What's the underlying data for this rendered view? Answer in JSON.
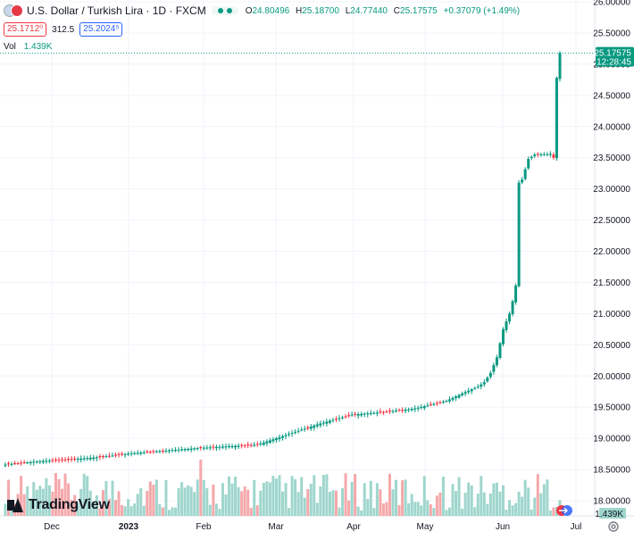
{
  "header": {
    "title": "U.S. Dollar / Turkish Lira · 1D · FXCM",
    "ohlc": {
      "o_key": "O",
      "o": "24.80496",
      "h_key": "H",
      "h": "25.18700",
      "l_key": "L",
      "l": "24.77440",
      "c_key": "C",
      "c": "25.17575",
      "change": "+0.37079 (+1.49%)"
    },
    "sell_price": "25.1712⁰",
    "spread": "312.5",
    "buy_price": "25.2024⁵",
    "vol_label": "Vol",
    "vol_value": "1.439K"
  },
  "logo": {
    "text": "TradingView"
  },
  "price_badge": {
    "price": "25.17575",
    "countdown": "12:28:45"
  },
  "volume_badge": "1.439K",
  "colors": {
    "up": "#089981",
    "down": "#f23645",
    "vol_up": "#9fd6cd",
    "vol_down": "#f5a8aa",
    "grid": "#f0f3fa",
    "text": "#131722"
  },
  "chart_data": {
    "type": "candlestick",
    "y_axis_ticks": [
      "18.00000",
      "18.50000",
      "19.00000",
      "19.50000",
      "20.00000",
      "20.50000",
      "21.00000",
      "21.50000",
      "22.00000",
      "22.50000",
      "23.00000",
      "23.50000",
      "24.00000",
      "24.50000",
      "25.00000",
      "25.50000",
      "26.00000"
    ],
    "ylim": [
      17.8,
      26.0
    ],
    "x_axis_ticks": [
      "Dec",
      "2023",
      "Feb",
      "Mar",
      "Apr",
      "May",
      "Jun",
      "Jul"
    ],
    "last_close": 25.17575,
    "series": [
      {
        "name": "price",
        "anchors": [
          [
            0,
            18.58
          ],
          [
            10,
            18.63
          ],
          [
            20,
            18.66
          ],
          [
            30,
            18.7
          ],
          [
            40,
            18.76
          ],
          [
            50,
            18.8
          ],
          [
            60,
            18.84
          ],
          [
            70,
            18.87
          ],
          [
            80,
            18.9
          ],
          [
            90,
            19.07
          ],
          [
            100,
            19.24
          ],
          [
            110,
            19.38
          ],
          [
            120,
            19.42
          ],
          [
            130,
            19.48
          ],
          [
            140,
            19.6
          ],
          [
            145,
            19.72
          ],
          [
            150,
            19.83
          ],
          [
            152,
            19.9
          ],
          [
            154,
            20.05
          ],
          [
            156,
            20.3
          ],
          [
            158,
            20.75
          ],
          [
            160,
            21.0
          ],
          [
            161,
            21.2
          ],
          [
            162,
            21.45
          ],
          [
            163,
            23.1
          ],
          [
            164,
            23.15
          ],
          [
            166,
            23.48
          ],
          [
            168,
            23.55
          ],
          [
            173,
            23.56
          ],
          [
            174,
            23.5
          ],
          [
            175,
            24.78
          ],
          [
            176,
            25.18
          ]
        ]
      },
      {
        "name": "volume",
        "max": 1.439
      }
    ]
  }
}
